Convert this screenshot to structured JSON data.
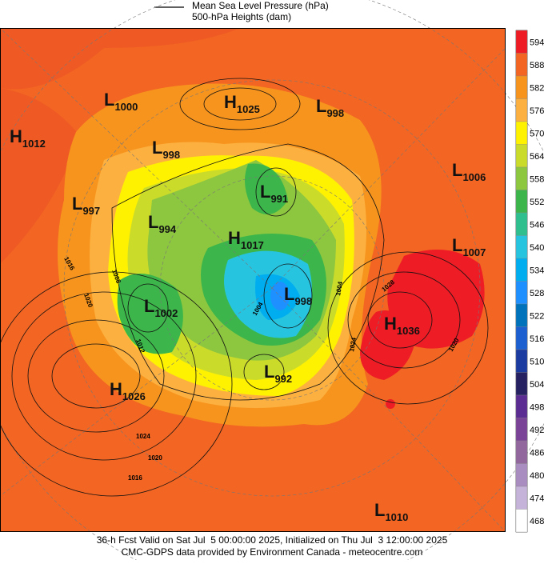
{
  "legend": {
    "line_label": "Mean Sea Level Pressure (hPa)",
    "fill_label": "500-hPa Heights (dam)"
  },
  "colorbar": [
    {
      "label": "594",
      "color": "#ee1c25"
    },
    {
      "label": "588",
      "color": "#f26522"
    },
    {
      "label": "582",
      "color": "#f7941d"
    },
    {
      "label": "576",
      "color": "#fcb040"
    },
    {
      "label": "570",
      "color": "#fff200"
    },
    {
      "label": "564",
      "color": "#cbdb2a"
    },
    {
      "label": "558",
      "color": "#8dc63f"
    },
    {
      "label": "552",
      "color": "#3cb64a"
    },
    {
      "label": "546",
      "color": "#2fbf8f"
    },
    {
      "label": "540",
      "color": "#27c4e0"
    },
    {
      "label": "534",
      "color": "#00aeef"
    },
    {
      "label": "528",
      "color": "#1e90ff"
    },
    {
      "label": "522",
      "color": "#0072bc"
    },
    {
      "label": "516",
      "color": "#1b5fd0"
    },
    {
      "label": "510",
      "color": "#1c3ba0"
    },
    {
      "label": "504",
      "color": "#262262"
    },
    {
      "label": "498",
      "color": "#5b2c91"
    },
    {
      "label": "492",
      "color": "#7b4397"
    },
    {
      "label": "486",
      "color": "#92679e"
    },
    {
      "label": "480",
      "color": "#a98cc0"
    },
    {
      "label": "474",
      "color": "#c6b3d9"
    },
    {
      "label": "468",
      "color": "#ffffff"
    }
  ],
  "centers": [
    {
      "letter": "H",
      "value": "1025"
    },
    {
      "letter": "L",
      "value": "998"
    },
    {
      "letter": "L",
      "value": "1000"
    },
    {
      "letter": "H",
      "value": "1012"
    },
    {
      "letter": "L",
      "value": "998"
    },
    {
      "letter": "L",
      "value": "1006"
    },
    {
      "letter": "L",
      "value": "991"
    },
    {
      "letter": "L",
      "value": "997"
    },
    {
      "letter": "L",
      "value": "994"
    },
    {
      "letter": "H",
      "value": "1017"
    },
    {
      "letter": "L",
      "value": "1007"
    },
    {
      "letter": "L",
      "value": "998"
    },
    {
      "letter": "L",
      "value": "1002"
    },
    {
      "letter": "H",
      "value": "1036"
    },
    {
      "letter": "L",
      "value": "992"
    },
    {
      "letter": "H",
      "value": "1026"
    },
    {
      "letter": "L",
      "value": "1010"
    }
  ],
  "contour_labels": [
    "1016",
    "1008",
    "1020",
    "1012",
    "1024",
    "1020",
    "1016",
    "1028",
    "1024",
    "1004",
    "1020",
    "1004"
  ],
  "footer": {
    "line1": "36-h Fcst Valid on Sat Jul  5 00:00:00 2025, Initialized on Thu Jul  3 12:00:00 2025",
    "line2": "CMC-GDPS data provided by Environment Canada - meteocentre.com"
  }
}
